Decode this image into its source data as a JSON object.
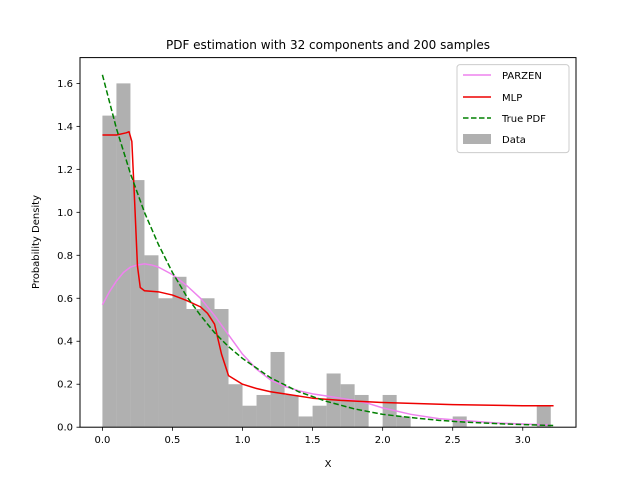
{
  "chart_data": {
    "type": "line",
    "title": "PDF estimation with 32 components and 200 samples",
    "xlabel": "X",
    "ylabel": "Probability Density",
    "xlim": [
      -0.16,
      3.38
    ],
    "ylim": [
      0,
      1.72
    ],
    "xticks": [
      0.0,
      0.5,
      1.0,
      1.5,
      2.0,
      2.5,
      3.0
    ],
    "xtick_labels": [
      "0.0",
      "0.5",
      "1.0",
      "1.5",
      "2.0",
      "2.5",
      "3.0"
    ],
    "yticks": [
      0.0,
      0.2,
      0.4,
      0.6,
      0.8,
      1.0,
      1.2,
      1.4,
      1.6
    ],
    "ytick_labels": [
      "0.0",
      "0.2",
      "0.4",
      "0.6",
      "0.8",
      "1.0",
      "1.2",
      "1.4",
      "1.6"
    ],
    "grid": false,
    "legend_position": "top-right",
    "histogram": {
      "name": "Data",
      "color": "#b0b0b0",
      "bin_start": 0.0,
      "bin_width": 0.1,
      "values": [
        1.45,
        1.6,
        1.15,
        0.8,
        0.6,
        0.7,
        0.55,
        0.6,
        0.55,
        0.2,
        0.1,
        0.15,
        0.35,
        0.15,
        0.05,
        0.1,
        0.25,
        0.2,
        0.15,
        0.0,
        0.15,
        0.05,
        0.0,
        0.0,
        0.0,
        0.05,
        0.0,
        0.0,
        0.0,
        0.0,
        0.0,
        0.1
      ]
    },
    "series": [
      {
        "name": "PARZEN",
        "color": "#ee82ee",
        "dash": "solid",
        "x": [
          0.0,
          0.05,
          0.1,
          0.15,
          0.2,
          0.25,
          0.3,
          0.35,
          0.4,
          0.5,
          0.6,
          0.7,
          0.8,
          0.9,
          1.0,
          1.1,
          1.2,
          1.3,
          1.4,
          1.5,
          1.6,
          1.7,
          1.8,
          1.9,
          2.0,
          2.2,
          2.4,
          2.6,
          2.8,
          3.0,
          3.2
        ],
        "y": [
          0.57,
          0.63,
          0.68,
          0.72,
          0.745,
          0.755,
          0.76,
          0.755,
          0.745,
          0.71,
          0.66,
          0.6,
          0.52,
          0.43,
          0.34,
          0.27,
          0.22,
          0.19,
          0.17,
          0.155,
          0.145,
          0.135,
          0.125,
          0.11,
          0.09,
          0.06,
          0.04,
          0.03,
          0.02,
          0.015,
          0.01
        ]
      },
      {
        "name": "MLP",
        "color": "#ee0000",
        "dash": "solid",
        "x": [
          0.0,
          0.1,
          0.17,
          0.19,
          0.21,
          0.23,
          0.25,
          0.27,
          0.3,
          0.4,
          0.5,
          0.6,
          0.7,
          0.75,
          0.8,
          0.85,
          0.9,
          1.0,
          1.1,
          1.2,
          1.3,
          1.5,
          1.7,
          2.0,
          2.5,
          3.0,
          3.22
        ],
        "y": [
          1.36,
          1.36,
          1.37,
          1.375,
          1.33,
          1.05,
          0.75,
          0.65,
          0.635,
          0.63,
          0.615,
          0.59,
          0.56,
          0.53,
          0.48,
          0.34,
          0.24,
          0.2,
          0.18,
          0.165,
          0.155,
          0.135,
          0.125,
          0.115,
          0.105,
          0.1,
          0.1
        ]
      },
      {
        "name": "True PDF",
        "color": "#008000",
        "dash": "dashed",
        "x": [
          0.0,
          0.1,
          0.2,
          0.3,
          0.4,
          0.5,
          0.6,
          0.7,
          0.8,
          0.9,
          1.0,
          1.2,
          1.4,
          1.6,
          1.8,
          2.0,
          2.2,
          2.4,
          2.6,
          2.8,
          3.0,
          3.22
        ],
        "y": [
          1.64,
          1.39,
          1.18,
          1.0,
          0.85,
          0.72,
          0.61,
          0.52,
          0.44,
          0.375,
          0.32,
          0.23,
          0.165,
          0.12,
          0.085,
          0.06,
          0.045,
          0.032,
          0.023,
          0.017,
          0.012,
          0.008
        ]
      }
    ]
  }
}
